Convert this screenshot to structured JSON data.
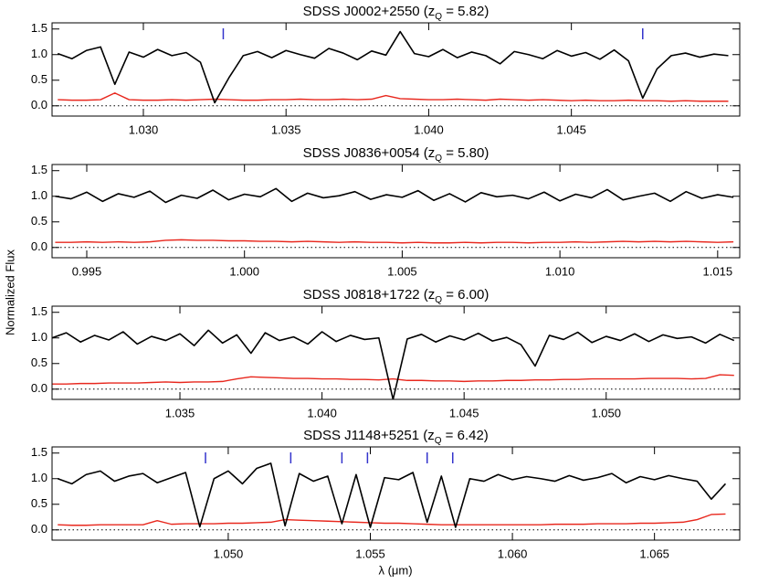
{
  "y_label": "Normalized Flux",
  "x_label": "λ (μm)",
  "chart_data": [
    {
      "type": "line",
      "title_parts": [
        "SDSS J0002+2550 (z",
        "Q",
        " = 5.82)"
      ],
      "x": [
        1.027,
        1.0275,
        1.028,
        1.0285,
        1.029,
        1.0295,
        1.03,
        1.0305,
        1.031,
        1.0315,
        1.032,
        1.0325,
        1.033,
        1.0335,
        1.034,
        1.0345,
        1.035,
        1.0355,
        1.036,
        1.0365,
        1.037,
        1.0375,
        1.038,
        1.0385,
        1.039,
        1.0395,
        1.04,
        1.0405,
        1.041,
        1.0415,
        1.042,
        1.0425,
        1.043,
        1.0435,
        1.044,
        1.0445,
        1.045,
        1.0455,
        1.046,
        1.0465,
        1.047,
        1.0475,
        1.048,
        1.0485,
        1.049,
        1.0495,
        1.05,
        1.0505
      ],
      "series": [
        {
          "color": "#000000",
          "values": [
            1.02,
            0.92,
            1.08,
            1.15,
            0.42,
            1.05,
            0.95,
            1.1,
            0.98,
            1.04,
            0.85,
            0.06,
            0.55,
            0.98,
            1.06,
            0.94,
            1.08,
            1.0,
            0.93,
            1.12,
            1.03,
            0.9,
            1.07,
            0.99,
            1.45,
            1.02,
            0.96,
            1.1,
            0.94,
            1.05,
            0.98,
            0.82,
            1.06,
            1.0,
            0.92,
            1.08,
            0.97,
            1.04,
            0.91,
            1.09,
            0.88,
            0.15,
            0.72,
            0.98,
            1.03,
            0.95,
            1.01,
            0.98
          ]
        },
        {
          "color": "#e8281e",
          "values": [
            0.12,
            0.11,
            0.11,
            0.12,
            0.25,
            0.12,
            0.11,
            0.11,
            0.12,
            0.11,
            0.12,
            0.13,
            0.12,
            0.11,
            0.11,
            0.12,
            0.12,
            0.13,
            0.12,
            0.12,
            0.13,
            0.12,
            0.13,
            0.2,
            0.14,
            0.13,
            0.12,
            0.12,
            0.13,
            0.12,
            0.11,
            0.13,
            0.12,
            0.11,
            0.12,
            0.11,
            0.1,
            0.11,
            0.1,
            0.1,
            0.11,
            0.1,
            0.1,
            0.09,
            0.1,
            0.09,
            0.09,
            0.09
          ]
        }
      ],
      "markers": [
        1.0328,
        1.0475
      ],
      "marker_color": "#3333cc",
      "reference_line": 0,
      "xlim": [
        1.0268,
        1.0509
      ],
      "xticks": [
        {
          "value": 1.03,
          "label": "1.030"
        },
        1.035,
        {
          "value": 1.04,
          "label": "1.040"
        },
        1.045
      ],
      "ylim": [
        -0.2,
        1.62
      ],
      "yticks": [
        {
          "value": 0,
          "label": "0.0"
        },
        0.5,
        {
          "value": 1,
          "label": "1.0"
        },
        1.5
      ]
    },
    {
      "type": "line",
      "title_parts": [
        "SDSS J0836+0054 (z",
        "Q",
        " = 5.80)"
      ],
      "x": [
        0.994,
        0.9945,
        0.995,
        0.9955,
        0.996,
        0.9965,
        0.997,
        0.9975,
        0.998,
        0.9985,
        0.999,
        0.9995,
        1.0,
        1.0005,
        1.001,
        1.0015,
        1.002,
        1.0025,
        1.003,
        1.0035,
        1.004,
        1.0045,
        1.005,
        1.0055,
        1.006,
        1.0065,
        1.007,
        1.0075,
        1.008,
        1.0085,
        1.009,
        1.0095,
        1.01,
        1.0105,
        1.011,
        1.0115,
        1.012,
        1.0125,
        1.013,
        1.0135,
        1.014,
        1.0145,
        1.015,
        1.0155
      ],
      "series": [
        {
          "color": "#000000",
          "values": [
            1.0,
            0.95,
            1.08,
            0.9,
            1.05,
            0.98,
            1.1,
            0.88,
            1.02,
            0.96,
            1.12,
            0.93,
            1.04,
            0.99,
            1.15,
            0.9,
            1.06,
            0.97,
            1.01,
            1.09,
            0.94,
            1.03,
            0.98,
            1.11,
            0.92,
            1.05,
            0.89,
            1.07,
            0.99,
            1.02,
            0.95,
            1.08,
            0.91,
            1.04,
            0.97,
            1.13,
            0.93,
            1.0,
            1.06,
            0.9,
            1.09,
            0.96,
            1.03,
            0.98
          ]
        },
        {
          "color": "#e8281e",
          "values": [
            0.1,
            0.1,
            0.11,
            0.1,
            0.11,
            0.1,
            0.11,
            0.14,
            0.15,
            0.14,
            0.14,
            0.13,
            0.13,
            0.12,
            0.12,
            0.11,
            0.12,
            0.11,
            0.1,
            0.11,
            0.1,
            0.1,
            0.09,
            0.1,
            0.09,
            0.09,
            0.1,
            0.09,
            0.1,
            0.1,
            0.09,
            0.1,
            0.1,
            0.11,
            0.1,
            0.11,
            0.12,
            0.11,
            0.12,
            0.11,
            0.12,
            0.11,
            0.1,
            0.11
          ]
        }
      ],
      "reference_line": 0,
      "xlim": [
        0.9939,
        1.0157
      ],
      "xticks": [
        0.995,
        {
          "value": 1.0,
          "label": "1.000"
        },
        1.005,
        {
          "value": 1.01,
          "label": "1.010"
        },
        1.015
      ],
      "ylim": [
        -0.2,
        1.62
      ],
      "yticks": [
        {
          "value": 0,
          "label": "0.0"
        },
        0.5,
        {
          "value": 1,
          "label": "1.0"
        },
        1.5
      ]
    },
    {
      "type": "line",
      "title_parts": [
        "SDSS J0818+1722 (z",
        "Q",
        " = 6.00)"
      ],
      "x": [
        1.0305,
        1.031,
        1.0315,
        1.032,
        1.0325,
        1.033,
        1.0335,
        1.034,
        1.0345,
        1.035,
        1.0355,
        1.036,
        1.0365,
        1.037,
        1.0375,
        1.038,
        1.0385,
        1.039,
        1.0395,
        1.04,
        1.0405,
        1.041,
        1.0415,
        1.042,
        1.0425,
        1.043,
        1.0435,
        1.044,
        1.0445,
        1.045,
        1.0455,
        1.046,
        1.0465,
        1.047,
        1.0475,
        1.048,
        1.0485,
        1.049,
        1.0495,
        1.05,
        1.0505,
        1.051,
        1.0515,
        1.052,
        1.0525,
        1.053,
        1.0535,
        1.054,
        1.0545
      ],
      "series": [
        {
          "color": "#000000",
          "values": [
            1.0,
            1.1,
            0.92,
            1.05,
            0.96,
            1.12,
            0.88,
            1.03,
            0.95,
            1.08,
            0.85,
            1.15,
            0.9,
            1.06,
            0.7,
            1.1,
            0.95,
            1.02,
            0.88,
            1.12,
            0.93,
            1.05,
            0.97,
            1.0,
            -0.2,
            0.98,
            1.07,
            0.92,
            1.04,
            0.96,
            1.09,
            0.94,
            1.01,
            0.87,
            0.45,
            1.05,
            0.97,
            1.11,
            0.91,
            1.03,
            0.95,
            1.08,
            0.93,
            1.06,
            0.99,
            1.02,
            0.9,
            1.07,
            0.95
          ]
        },
        {
          "color": "#e8281e",
          "values": [
            0.1,
            0.1,
            0.11,
            0.11,
            0.12,
            0.12,
            0.12,
            0.13,
            0.14,
            0.13,
            0.14,
            0.14,
            0.15,
            0.2,
            0.24,
            0.23,
            0.22,
            0.21,
            0.21,
            0.2,
            0.2,
            0.19,
            0.19,
            0.18,
            0.2,
            0.17,
            0.17,
            0.16,
            0.16,
            0.15,
            0.16,
            0.16,
            0.17,
            0.17,
            0.18,
            0.18,
            0.19,
            0.19,
            0.2,
            0.2,
            0.2,
            0.2,
            0.21,
            0.21,
            0.21,
            0.2,
            0.21,
            0.28,
            0.27
          ]
        }
      ],
      "reference_line": 0,
      "xlim": [
        1.0305,
        1.0547
      ],
      "xticks": [
        1.035,
        {
          "value": 1.04,
          "label": "1.040"
        },
        1.045,
        {
          "value": 1.05,
          "label": "1.050"
        }
      ],
      "ylim": [
        -0.2,
        1.62
      ],
      "yticks": [
        {
          "value": 0,
          "label": "0.0"
        },
        0.5,
        {
          "value": 1,
          "label": "1.0"
        },
        1.5
      ]
    },
    {
      "type": "line",
      "title_parts": [
        "SDSS J1148+5251 (z",
        "Q",
        " = 6.42)"
      ],
      "x": [
        1.044,
        1.0445,
        1.045,
        1.0455,
        1.046,
        1.0465,
        1.047,
        1.0475,
        1.048,
        1.0485,
        1.049,
        1.0495,
        1.05,
        1.0505,
        1.051,
        1.0515,
        1.052,
        1.0525,
        1.053,
        1.0535,
        1.054,
        1.0545,
        1.055,
        1.0555,
        1.056,
        1.0565,
        1.057,
        1.0575,
        1.058,
        1.0585,
        1.059,
        1.0595,
        1.06,
        1.0605,
        1.061,
        1.0615,
        1.062,
        1.0625,
        1.063,
        1.0635,
        1.064,
        1.0645,
        1.065,
        1.0655,
        1.066,
        1.0665,
        1.067,
        1.0675
      ],
      "series": [
        {
          "color": "#000000",
          "values": [
            1.0,
            0.9,
            1.08,
            1.15,
            0.95,
            1.05,
            1.1,
            0.92,
            1.02,
            1.12,
            0.06,
            1.0,
            1.15,
            0.9,
            1.2,
            1.3,
            0.08,
            1.1,
            0.95,
            1.05,
            0.12,
            1.08,
            0.05,
            1.02,
            0.98,
            1.12,
            0.15,
            1.05,
            0.05,
            1.0,
            0.95,
            1.08,
            0.98,
            1.04,
            1.0,
            0.95,
            1.06,
            0.97,
            1.02,
            1.1,
            0.92,
            1.04,
            0.98,
            1.06,
            1.0,
            0.95,
            0.6,
            0.9
          ]
        },
        {
          "color": "#e8281e",
          "values": [
            0.1,
            0.09,
            0.09,
            0.1,
            0.1,
            0.1,
            0.1,
            0.18,
            0.11,
            0.12,
            0.12,
            0.12,
            0.13,
            0.13,
            0.14,
            0.15,
            0.2,
            0.19,
            0.18,
            0.17,
            0.16,
            0.15,
            0.14,
            0.13,
            0.13,
            0.12,
            0.11,
            0.1,
            0.1,
            0.1,
            0.1,
            0.1,
            0.1,
            0.1,
            0.1,
            0.11,
            0.11,
            0.11,
            0.12,
            0.12,
            0.12,
            0.13,
            0.13,
            0.14,
            0.15,
            0.2,
            0.3,
            0.31
          ]
        }
      ],
      "markers": [
        1.0492,
        1.0522,
        1.054,
        1.0549,
        1.057,
        1.0579
      ],
      "marker_color": "#3333cc",
      "reference_line": 0,
      "xlim": [
        1.0438,
        1.068
      ],
      "xticks": [
        {
          "value": 1.05,
          "label": "1.050"
        },
        1.055,
        {
          "value": 1.06,
          "label": "1.060"
        },
        1.065
      ],
      "ylim": [
        -0.2,
        1.62
      ],
      "yticks": [
        {
          "value": 0,
          "label": "0.0"
        },
        0.5,
        {
          "value": 1,
          "label": "1.0"
        },
        1.5
      ]
    }
  ]
}
